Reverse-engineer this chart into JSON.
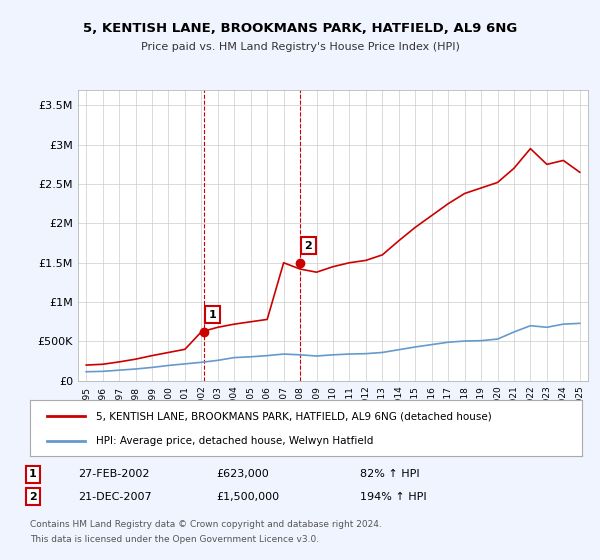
{
  "title_line1": "5, KENTISH LANE, BROOKMANS PARK, HATFIELD, AL9 6NG",
  "title_line2": "Price paid vs. HM Land Registry's House Price Index (HPI)",
  "ylim": [
    0,
    3700000
  ],
  "yticks": [
    0,
    500000,
    1000000,
    1500000,
    2000000,
    2500000,
    3000000,
    3500000
  ],
  "ytick_labels": [
    "£0",
    "£500K",
    "£1M",
    "£1.5M",
    "£2M",
    "£2.5M",
    "£3M",
    "£3.5M"
  ],
  "x_start_year": 1995,
  "x_end_year": 2025,
  "background_color": "#f0f4ff",
  "plot_bg_color": "#ffffff",
  "red_line_color": "#cc0000",
  "blue_line_color": "#6699cc",
  "marker_color": "#cc0000",
  "vline_color": "#cc0000",
  "grid_color": "#cccccc",
  "legend_label_red": "5, KENTISH LANE, BROOKMANS PARK, HATFIELD, AL9 6NG (detached house)",
  "legend_label_blue": "HPI: Average price, detached house, Welwyn Hatfield",
  "annotation1_num": "1",
  "annotation1_date": "27-FEB-2002",
  "annotation1_price": "£623,000",
  "annotation1_pct": "82% ↑ HPI",
  "annotation1_year": 2002.15,
  "annotation1_price_val": 623000,
  "annotation2_num": "2",
  "annotation2_date": "21-DEC-2007",
  "annotation2_price": "£1,500,000",
  "annotation2_pct": "194% ↑ HPI",
  "annotation2_year": 2007.97,
  "annotation2_price_val": 1500000,
  "footer_line1": "Contains HM Land Registry data © Crown copyright and database right 2024.",
  "footer_line2": "This data is licensed under the Open Government Licence v3.0.",
  "hpi_blue_data": {
    "years": [
      1995,
      1996,
      1997,
      1998,
      1999,
      2000,
      2001,
      2002,
      2003,
      2004,
      2005,
      2006,
      2007,
      2008,
      2009,
      2010,
      2011,
      2012,
      2013,
      2014,
      2015,
      2016,
      2017,
      2018,
      2019,
      2020,
      2021,
      2022,
      2023,
      2024,
      2025
    ],
    "values": [
      115000,
      120000,
      135000,
      150000,
      170000,
      195000,
      215000,
      235000,
      260000,
      295000,
      305000,
      320000,
      340000,
      330000,
      315000,
      330000,
      340000,
      345000,
      360000,
      395000,
      430000,
      460000,
      490000,
      505000,
      510000,
      530000,
      620000,
      700000,
      680000,
      720000,
      730000
    ]
  },
  "red_line_data": {
    "years": [
      1995,
      1996,
      1997,
      1998,
      1999,
      2000,
      2001,
      2002,
      2003,
      2004,
      2005,
      2006,
      2007,
      2008,
      2009,
      2010,
      2011,
      2012,
      2013,
      2014,
      2015,
      2016,
      2017,
      2018,
      2019,
      2020,
      2021,
      2022,
      2023,
      2024,
      2025
    ],
    "values": [
      200000,
      210000,
      240000,
      275000,
      320000,
      360000,
      400000,
      623000,
      680000,
      720000,
      750000,
      780000,
      1500000,
      1420000,
      1380000,
      1450000,
      1500000,
      1530000,
      1600000,
      1780000,
      1950000,
      2100000,
      2250000,
      2380000,
      2450000,
      2520000,
      2700000,
      2950000,
      2750000,
      2800000,
      2650000
    ]
  }
}
